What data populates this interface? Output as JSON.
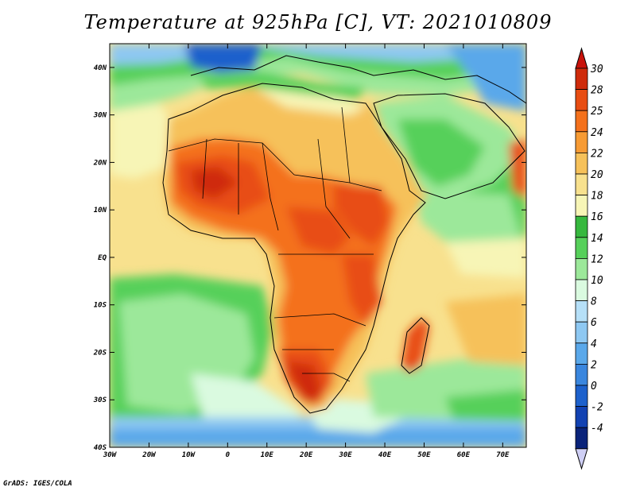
{
  "title": "Temperature at 925hPa [C], VT: 2021010809",
  "credit": "GrADS: IGES/COLA",
  "map": {
    "lon_range": [
      -30,
      76
    ],
    "lat_range": [
      -40,
      45
    ],
    "lon_ticks": [
      "30W",
      "20W",
      "10W",
      "0",
      "10E",
      "20E",
      "30E",
      "40E",
      "50E",
      "60E",
      "70E"
    ],
    "lat_ticks": [
      "40N",
      "30N",
      "20N",
      "10N",
      "EQ",
      "10S",
      "20S",
      "30S",
      "40S"
    ]
  },
  "colorbar": {
    "levels": [
      "30",
      "28",
      "25",
      "24",
      "22",
      "20",
      "18",
      "16",
      "14",
      "12",
      "10",
      "8",
      "6",
      "4",
      "2",
      "0",
      "-2",
      "-4"
    ],
    "colors": [
      "#cf2b0b",
      "#e84d12",
      "#f4711c",
      "#f79b34",
      "#f6c15a",
      "#f8e18e",
      "#f7f5b6",
      "#36b83e",
      "#56d05a",
      "#9ce89a",
      "#dafae0",
      "#b6e0f8",
      "#8ec8f2",
      "#5aa8ea",
      "#3a86de",
      "#1d61cc",
      "#1242b2",
      "#0a237a"
    ],
    "top_color": "#c8120b",
    "bottom_color": "#cfcff5"
  }
}
